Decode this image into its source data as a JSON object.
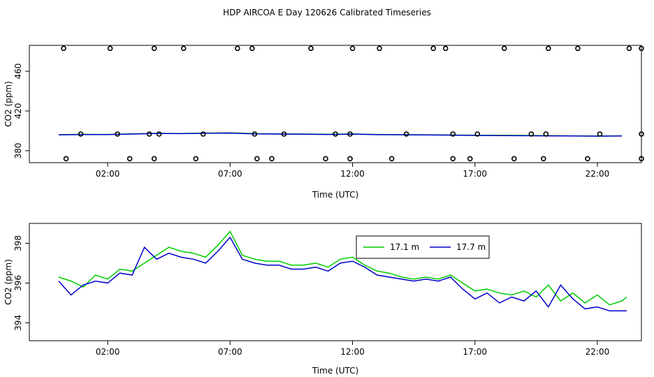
{
  "title": "HDP AIRCOA E  Day 120626  Calibrated Timeseries",
  "colors": {
    "green": "#00cc00",
    "blue": "#0000cc",
    "black": "#000000"
  },
  "chart_data": [
    {
      "type": "scatter",
      "xlabel": "Time (UTC)",
      "ylabel": "CO2 (ppm)",
      "xlim": [
        -1.2,
        23.8
      ],
      "ylim": [
        368,
        486
      ],
      "xticks": [
        2,
        7,
        12,
        17,
        22
      ],
      "xtick_labels": [
        "02:00",
        "07:00",
        "12:00",
        "17:00",
        "22:00"
      ],
      "yticks": [
        380,
        420,
        460
      ],
      "ytick_labels": [
        "380",
        "420",
        "460"
      ],
      "grid": false,
      "series": [
        {
          "style": "line",
          "color": "green",
          "x": [
            0,
            1,
            2,
            3,
            4,
            5,
            6,
            7,
            8,
            9,
            10,
            11,
            12,
            13,
            14,
            15,
            16,
            17,
            18,
            19,
            20,
            21,
            22,
            23
          ],
          "y": [
            396.2,
            396.5,
            396.4,
            397.0,
            397.5,
            397.3,
            397.8,
            398.0,
            397.2,
            396.9,
            396.8,
            396.6,
            396.9,
            396.4,
            396.2,
            396.0,
            395.9,
            395.6,
            395.5,
            395.4,
            395.2,
            395.0,
            394.9,
            395.0
          ]
        },
        {
          "style": "line",
          "color": "blue",
          "x": [
            0,
            1,
            2,
            3,
            4,
            5,
            6,
            7,
            8,
            9,
            10,
            11,
            12,
            13,
            14,
            15,
            16,
            17,
            18,
            19,
            20,
            21,
            22,
            23
          ],
          "y": [
            396.0,
            396.3,
            396.3,
            396.8,
            397.4,
            397.2,
            397.6,
            397.8,
            397.0,
            396.8,
            396.6,
            396.4,
            396.7,
            396.2,
            396.1,
            395.9,
            395.7,
            395.4,
            395.2,
            395.1,
            395.0,
            394.8,
            394.7,
            394.8
          ]
        },
        {
          "style": "points",
          "color": "black",
          "x": [
            0.2,
            2.1,
            3.9,
            5.1,
            7.3,
            7.9,
            10.3,
            12.0,
            13.1,
            15.3,
            15.8,
            18.2,
            20.0,
            21.2,
            23.3,
            23.8
          ],
          "y": [
            483,
            483,
            483,
            483,
            483,
            483,
            483,
            483,
            483,
            483,
            483,
            483,
            483,
            483,
            483,
            483
          ]
        },
        {
          "style": "points",
          "color": "black",
          "x": [
            0.9,
            2.4,
            3.7,
            4.1,
            5.9,
            8.0,
            9.2,
            11.3,
            11.9,
            14.2,
            16.1,
            17.1,
            19.3,
            19.9,
            22.1,
            23.8
          ],
          "y": [
            396.8,
            396.8,
            396.8,
            396.8,
            396.8,
            396.8,
            396.8,
            396.8,
            396.8,
            396.8,
            396.8,
            396.8,
            396.8,
            396.8,
            396.8,
            396.8
          ]
        },
        {
          "style": "points",
          "color": "black",
          "x": [
            0.3,
            2.9,
            3.9,
            5.6,
            8.1,
            8.7,
            10.9,
            11.9,
            13.6,
            16.1,
            16.8,
            18.6,
            19.8,
            21.6,
            23.8
          ],
          "y": [
            372,
            372,
            372,
            372,
            372,
            372,
            372,
            372,
            372,
            372,
            372,
            372,
            372,
            372,
            372
          ]
        }
      ]
    },
    {
      "type": "line",
      "xlabel": "Time (UTC)",
      "ylabel": "CO2 (ppm)",
      "xlim": [
        -1.2,
        23.8
      ],
      "ylim": [
        393.1,
        399.0
      ],
      "xticks": [
        2,
        7,
        12,
        17,
        22
      ],
      "xtick_labels": [
        "02:00",
        "07:00",
        "12:00",
        "17:00",
        "22:00"
      ],
      "yticks": [
        394,
        396,
        398
      ],
      "ytick_labels": [
        "394",
        "396",
        "398"
      ],
      "grid": false,
      "legend": "top-center",
      "series": [
        {
          "name": "17.1 m",
          "color": "green",
          "x": [
            0,
            0.5,
            1,
            1.5,
            2,
            2.5,
            3,
            3.5,
            4,
            4.5,
            5,
            5.5,
            6,
            6.5,
            7,
            7.5,
            8,
            8.5,
            9,
            9.5,
            10,
            10.5,
            11,
            11.5,
            12,
            12.5,
            13,
            13.5,
            14,
            14.5,
            15,
            15.5,
            16,
            16.5,
            17,
            17.5,
            18,
            18.5,
            19,
            19.5,
            20,
            20.5,
            21,
            21.5,
            22,
            22.5,
            23,
            23.2
          ],
          "y": [
            396.3,
            396.1,
            395.8,
            396.4,
            396.2,
            396.7,
            396.6,
            397.0,
            397.4,
            397.8,
            397.6,
            397.5,
            397.3,
            397.9,
            398.6,
            397.4,
            397.2,
            397.1,
            397.1,
            396.9,
            396.9,
            397.0,
            396.8,
            397.2,
            397.3,
            396.9,
            396.6,
            396.5,
            396.3,
            396.2,
            396.3,
            396.2,
            396.4,
            396.0,
            395.6,
            395.7,
            395.5,
            395.4,
            395.6,
            395.3,
            395.9,
            395.1,
            395.5,
            395.0,
            395.4,
            394.9,
            395.1,
            395.3
          ]
        },
        {
          "name": "17.7 m",
          "color": "blue",
          "x": [
            0,
            0.5,
            1,
            1.5,
            2,
            2.5,
            3,
            3.5,
            4,
            4.5,
            5,
            5.5,
            6,
            6.5,
            7,
            7.5,
            8,
            8.5,
            9,
            9.5,
            10,
            10.5,
            11,
            11.5,
            12,
            12.5,
            13,
            13.5,
            14,
            14.5,
            15,
            15.5,
            16,
            16.5,
            17,
            17.5,
            18,
            18.5,
            19,
            19.5,
            20,
            20.5,
            21,
            21.5,
            22,
            22.5,
            23,
            23.2
          ],
          "y": [
            396.1,
            395.4,
            395.9,
            396.1,
            396.0,
            396.5,
            396.4,
            397.8,
            397.2,
            397.5,
            397.3,
            397.2,
            397.0,
            397.6,
            398.3,
            397.2,
            397.0,
            396.9,
            396.9,
            396.7,
            396.7,
            396.8,
            396.6,
            397.0,
            397.1,
            396.8,
            396.4,
            396.3,
            396.2,
            396.1,
            396.2,
            396.1,
            396.3,
            395.7,
            395.2,
            395.5,
            395.0,
            395.3,
            395.1,
            395.6,
            394.8,
            395.9,
            395.2,
            394.7,
            394.8,
            394.6,
            394.6,
            394.6
          ]
        }
      ]
    }
  ]
}
